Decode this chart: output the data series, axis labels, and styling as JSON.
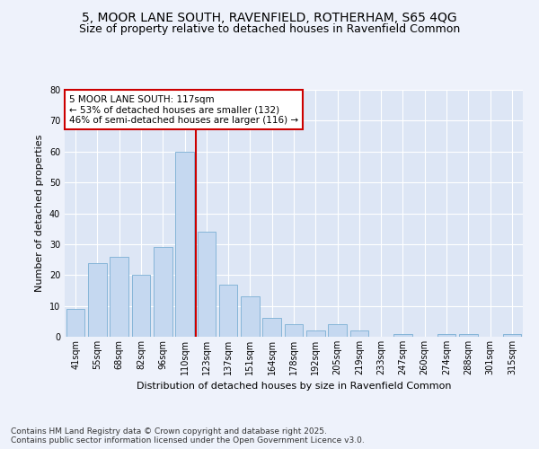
{
  "title_line1": "5, MOOR LANE SOUTH, RAVENFIELD, ROTHERHAM, S65 4QG",
  "title_line2": "Size of property relative to detached houses in Ravenfield Common",
  "xlabel": "Distribution of detached houses by size in Ravenfield Common",
  "ylabel": "Number of detached properties",
  "categories": [
    "41sqm",
    "55sqm",
    "68sqm",
    "82sqm",
    "96sqm",
    "110sqm",
    "123sqm",
    "137sqm",
    "151sqm",
    "164sqm",
    "178sqm",
    "192sqm",
    "205sqm",
    "219sqm",
    "233sqm",
    "247sqm",
    "260sqm",
    "274sqm",
    "288sqm",
    "301sqm",
    "315sqm"
  ],
  "values": [
    9,
    24,
    26,
    20,
    29,
    60,
    34,
    17,
    13,
    6,
    4,
    2,
    4,
    2,
    0,
    1,
    0,
    1,
    1,
    0,
    1
  ],
  "bar_color": "#c5d8f0",
  "bar_edgecolor": "#7aafd4",
  "vline_color": "#cc0000",
  "annotation_text": "5 MOOR LANE SOUTH: 117sqm\n← 53% of detached houses are smaller (132)\n46% of semi-detached houses are larger (116) →",
  "annotation_box_color": "#ffffff",
  "annotation_box_edgecolor": "#cc0000",
  "ylim": [
    0,
    80
  ],
  "yticks": [
    0,
    10,
    20,
    30,
    40,
    50,
    60,
    70,
    80
  ],
  "background_color": "#dde6f5",
  "fig_background_color": "#eef2fb",
  "footer_text": "Contains HM Land Registry data © Crown copyright and database right 2025.\nContains public sector information licensed under the Open Government Licence v3.0.",
  "title_fontsize": 10,
  "subtitle_fontsize": 9,
  "axis_label_fontsize": 8,
  "tick_fontsize": 7,
  "annotation_fontsize": 7.5,
  "footer_fontsize": 6.5
}
